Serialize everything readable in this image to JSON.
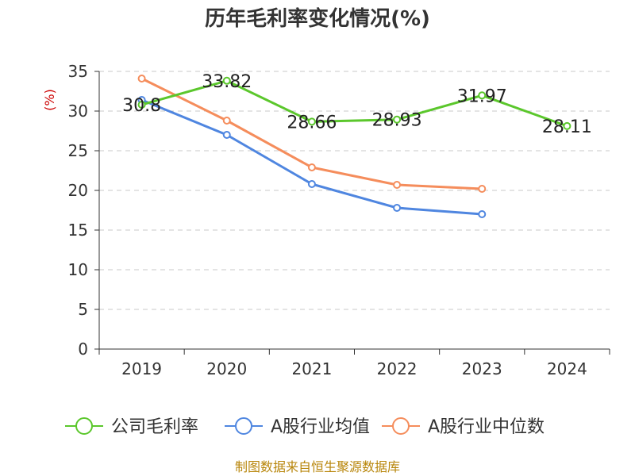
{
  "chart_data": {
    "type": "line",
    "title": "历年毛利率变化情况(%)",
    "ylabel": "(%)",
    "xlabel": "",
    "categories": [
      "2019",
      "2020",
      "2021",
      "2022",
      "2023",
      "2024"
    ],
    "ylim": [
      0,
      35
    ],
    "yticks": [
      "0",
      "5",
      "10",
      "15",
      "20",
      "25",
      "30",
      "35"
    ],
    "grid": true,
    "legend_position": "bottom",
    "series": [
      {
        "name": "公司毛利率",
        "color": "#5bc72c",
        "values": [
          30.8,
          33.82,
          28.66,
          28.93,
          31.97,
          28.11
        ],
        "labels": [
          "30.8",
          "33.82",
          "28.66",
          "28.93",
          "31.97",
          "28.11"
        ]
      },
      {
        "name": "A股行业均值",
        "color": "#4f86e0",
        "values": [
          31.4,
          27.0,
          20.8,
          17.8,
          17.0,
          null
        ],
        "labels": []
      },
      {
        "name": "A股行业中位数",
        "color": "#f58d5c",
        "values": [
          34.1,
          28.8,
          22.9,
          20.7,
          20.2,
          null
        ],
        "labels": []
      }
    ]
  },
  "footer": {
    "source": "制图数据来自恒生聚源数据库"
  }
}
